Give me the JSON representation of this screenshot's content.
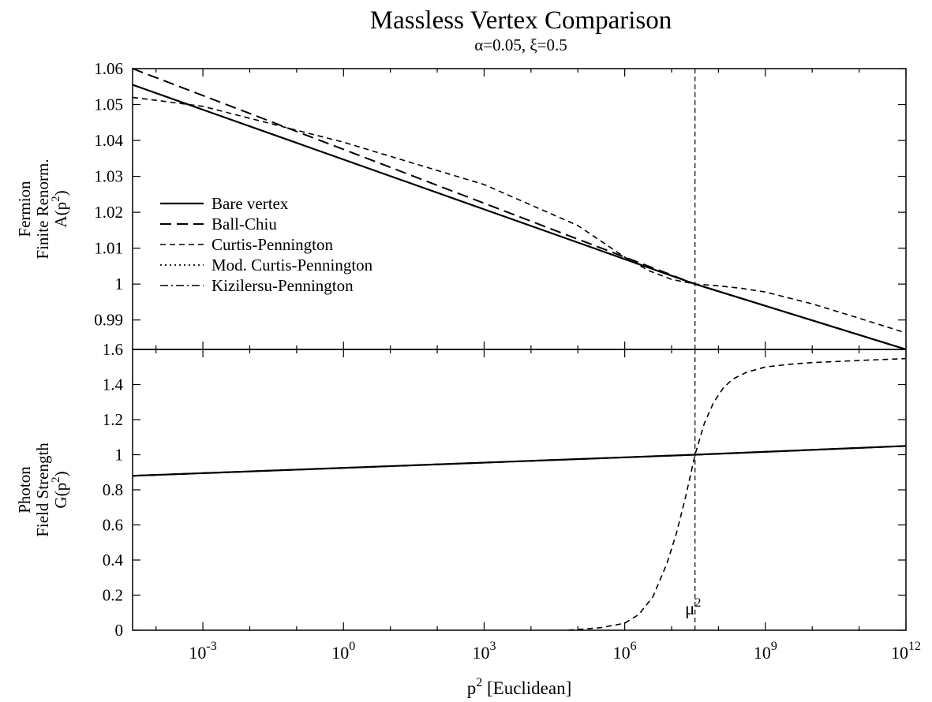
{
  "figure": {
    "title": "Massless Vertex Comparison",
    "subtitle": "α=0.05, ξ=0.5",
    "xlabel_main": "p",
    "xlabel_sup": "2",
    "xlabel_rest": " [Euclidean]",
    "mu_label": "μ",
    "mu_sup": "2"
  },
  "chart_data": [
    {
      "type": "line",
      "panel": "top",
      "ylabel_lines": [
        "Fermion",
        "Finite Renorm.",
        "A(p"
      ],
      "ylabel_sup": "2",
      "ylabel_end": ")",
      "x_scale": "log10",
      "xlim_log10": [
        -4.5,
        12
      ],
      "ylim": [
        0.9818,
        1.06
      ],
      "yticks": [
        0.99,
        1,
        1.01,
        1.02,
        1.03,
        1.04,
        1.05,
        1.06
      ],
      "ytick_labels": [
        "0.99",
        "1",
        "1.01",
        "1.02",
        "1.03",
        "1.04",
        "1.05",
        "1.06"
      ],
      "legend_position": "middle-left",
      "series": [
        {
          "name": "Bare vertex",
          "style": "solid",
          "x_log10": [
            -4.5,
            7.5,
            12
          ],
          "y": [
            1.0555,
            1.0,
            0.9818
          ]
        },
        {
          "name": "Ball-Chiu",
          "style": "longdash",
          "x_log10": [
            -4.5,
            7.5,
            12
          ],
          "y": [
            1.06,
            1.0,
            0.9818
          ]
        },
        {
          "name": "Curtis-Pennington",
          "style": "shortdash",
          "x_log10": [
            -4.5,
            -3,
            0,
            3,
            5,
            6,
            6.5,
            7,
            7.5,
            8,
            8.5,
            9,
            10,
            11,
            12
          ],
          "y": [
            1.052,
            1.0495,
            1.0395,
            1.0277,
            1.0163,
            1.0075,
            1.0038,
            1.0013,
            1.0,
            0.9995,
            0.9988,
            0.9978,
            0.9945,
            0.9905,
            0.9864
          ]
        },
        {
          "name": "Mod. Curtis-Pennington",
          "style": "dotted",
          "x_log10": [
            -4.5,
            7.5,
            12
          ],
          "y": [
            1.0555,
            1.0,
            0.9818
          ]
        },
        {
          "name": "Kizilersu-Pennington",
          "style": "dashdot",
          "x_log10": [
            -4.5,
            7.5,
            12
          ],
          "y": [
            1.0555,
            1.0,
            0.9818
          ]
        }
      ]
    },
    {
      "type": "line",
      "panel": "bottom",
      "ylabel_lines": [
        "Photon",
        "Field Strength",
        "G(p"
      ],
      "ylabel_sup": "2",
      "ylabel_end": ")",
      "x_scale": "log10",
      "xlim_log10": [
        -4.5,
        12
      ],
      "ylim": [
        0,
        1.6
      ],
      "yticks": [
        0,
        0.2,
        0.4,
        0.6,
        0.8,
        1,
        1.2,
        1.4,
        1.6
      ],
      "ytick_labels": [
        "0",
        "0.2",
        "0.4",
        "0.6",
        "0.8",
        "1",
        "1.2",
        "1.4",
        "1.6"
      ],
      "xticks_log10": [
        -3,
        0,
        3,
        6,
        9,
        12
      ],
      "xtick_base": "10",
      "xtick_exponents": [
        "-3",
        "0",
        "3",
        "6",
        "9",
        "12"
      ],
      "mu2_log10": 7.5,
      "series": [
        {
          "name": "Bare vertex",
          "style": "solid",
          "x_log10": [
            -4.5,
            7.5,
            12
          ],
          "y": [
            0.88,
            1.0,
            1.05
          ]
        },
        {
          "name": "Ball-Chiu",
          "style": "longdash",
          "x_log10": [
            -4.5,
            7.5,
            12
          ],
          "y": [
            0.88,
            1.0,
            1.05
          ]
        },
        {
          "name": "Curtis-Pennington",
          "style": "shortdash",
          "x_log10": [
            4.8,
            5.5,
            6.0,
            6.3,
            6.6,
            6.9,
            7.1,
            7.3,
            7.5,
            7.7,
            7.9,
            8.1,
            8.3,
            8.6,
            9.0,
            9.5,
            10.0,
            11.0,
            12.0
          ],
          "y": [
            0.0,
            0.015,
            0.04,
            0.09,
            0.19,
            0.38,
            0.55,
            0.76,
            1.0,
            1.18,
            1.3,
            1.38,
            1.43,
            1.47,
            1.5,
            1.515,
            1.525,
            1.537,
            1.548
          ]
        },
        {
          "name": "Mod. Curtis-Pennington",
          "style": "dotted",
          "x_log10": [
            -4.5,
            7.5,
            12
          ],
          "y": [
            0.88,
            1.0,
            1.05
          ]
        },
        {
          "name": "Kizilersu-Pennington",
          "style": "dashdot",
          "x_log10": [
            -4.5,
            7.5,
            12
          ],
          "y": [
            0.879,
            1.0,
            1.05
          ]
        }
      ]
    }
  ]
}
